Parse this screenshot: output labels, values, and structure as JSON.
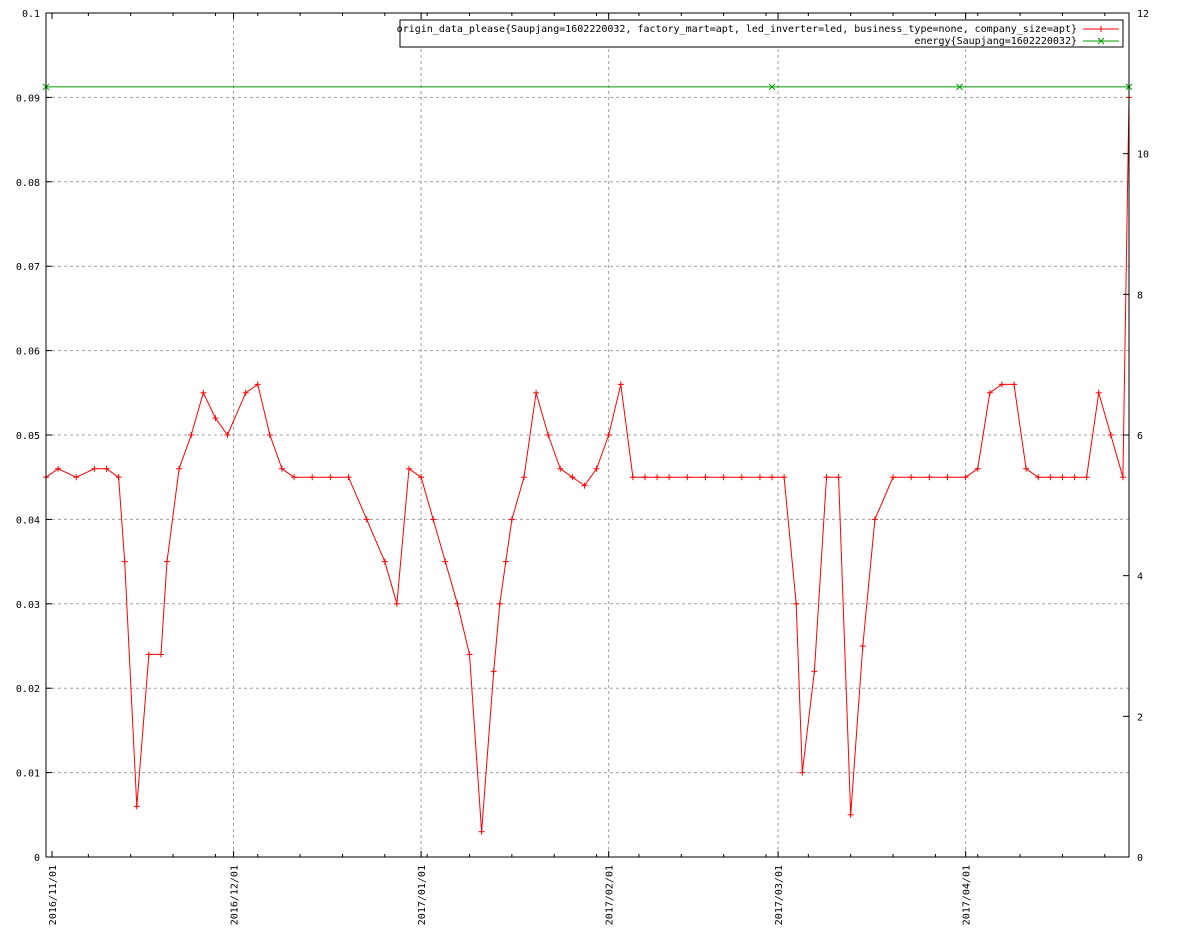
{
  "chart_data": {
    "type": "line",
    "title": "",
    "xlabel": "",
    "ylabel": "",
    "x_range": [
      "2016-10-31",
      "2017-04-28"
    ],
    "x_ticks": [
      "2016/11/01",
      "2016/12/01",
      "2017/01/01",
      "2017/02/01",
      "2017/03/01",
      "2017/04/01"
    ],
    "y_left": {
      "range": [
        0,
        0.1
      ],
      "ticks": [
        "0",
        "0.01",
        "0.02",
        "0.03",
        "0.04",
        "0.05",
        "0.06",
        "0.07",
        "0.08",
        "0.09",
        "0.1"
      ]
    },
    "y_right": {
      "range": [
        0,
        12
      ],
      "ticks": [
        "0",
        "2",
        "4",
        "6",
        "8",
        "10",
        "12"
      ]
    },
    "grid": true,
    "legend_position": "top-right",
    "series": [
      {
        "name": "origin_data_please{Saupjang=1602220032, factory_mart=apt, led_inverter=led, business_type=none, company_size=apt}",
        "axis": "left",
        "color": "#ff0000",
        "marker": "plus",
        "x": [
          "2016-10-31",
          "2016-11-02",
          "2016-11-05",
          "2016-11-08",
          "2016-11-10",
          "2016-11-12",
          "2016-11-13",
          "2016-11-15",
          "2016-11-17",
          "2016-11-19",
          "2016-11-20",
          "2016-11-22",
          "2016-11-24",
          "2016-11-26",
          "2016-11-28",
          "2016-11-30",
          "2016-12-03",
          "2016-12-05",
          "2016-12-07",
          "2016-12-09",
          "2016-12-11",
          "2016-12-14",
          "2016-12-17",
          "2016-12-20",
          "2016-12-23",
          "2016-12-26",
          "2016-12-28",
          "2016-12-30",
          "2017-01-01",
          "2017-01-03",
          "2017-01-05",
          "2017-01-07",
          "2017-01-09",
          "2017-01-11",
          "2017-01-13",
          "2017-01-14",
          "2017-01-15",
          "2017-01-16",
          "2017-01-18",
          "2017-01-20",
          "2017-01-22",
          "2017-01-24",
          "2017-01-26",
          "2017-01-28",
          "2017-01-30",
          "2017-02-01",
          "2017-02-03",
          "2017-02-05",
          "2017-02-07",
          "2017-02-09",
          "2017-02-11",
          "2017-02-14",
          "2017-02-17",
          "2017-02-20",
          "2017-02-23",
          "2017-02-26",
          "2017-02-28",
          "2017-03-02",
          "2017-03-04",
          "2017-03-05",
          "2017-03-07",
          "2017-03-09",
          "2017-03-11",
          "2017-03-13",
          "2017-03-15",
          "2017-03-17",
          "2017-03-20",
          "2017-03-23",
          "2017-03-26",
          "2017-03-29",
          "2017-04-01",
          "2017-04-03",
          "2017-04-05",
          "2017-04-07",
          "2017-04-09",
          "2017-04-11",
          "2017-04-13",
          "2017-04-15",
          "2017-04-17",
          "2017-04-19",
          "2017-04-21",
          "2017-04-23",
          "2017-04-25",
          "2017-04-27",
          "2017-04-28"
        ],
        "values": [
          0.045,
          0.046,
          0.045,
          0.046,
          0.046,
          0.045,
          0.035,
          0.006,
          0.024,
          0.024,
          0.035,
          0.046,
          0.05,
          0.055,
          0.052,
          0.05,
          0.055,
          0.056,
          0.05,
          0.046,
          0.045,
          0.045,
          0.045,
          0.045,
          0.04,
          0.035,
          0.03,
          0.046,
          0.045,
          0.04,
          0.035,
          0.03,
          0.024,
          0.003,
          0.022,
          0.03,
          0.035,
          0.04,
          0.045,
          0.055,
          0.05,
          0.046,
          0.045,
          0.044,
          0.046,
          0.05,
          0.056,
          0.045,
          0.045,
          0.045,
          0.045,
          0.045,
          0.045,
          0.045,
          0.045,
          0.045,
          0.045,
          0.045,
          0.03,
          0.01,
          0.022,
          0.045,
          0.045,
          0.005,
          0.025,
          0.04,
          0.045,
          0.045,
          0.045,
          0.045,
          0.045,
          0.046,
          0.055,
          0.056,
          0.056,
          0.046,
          0.045,
          0.045,
          0.045,
          0.045,
          0.045,
          0.055,
          0.05,
          0.045,
          0.09
        ]
      },
      {
        "name": "energy{Saupjang=1602220032}",
        "axis": "right",
        "color": "#00a000",
        "marker": "cross",
        "x": [
          "2016-10-31",
          "2017-02-28",
          "2017-03-31",
          "2017-04-28"
        ],
        "values": [
          10.95,
          10.95,
          10.95,
          10.95
        ]
      }
    ]
  }
}
